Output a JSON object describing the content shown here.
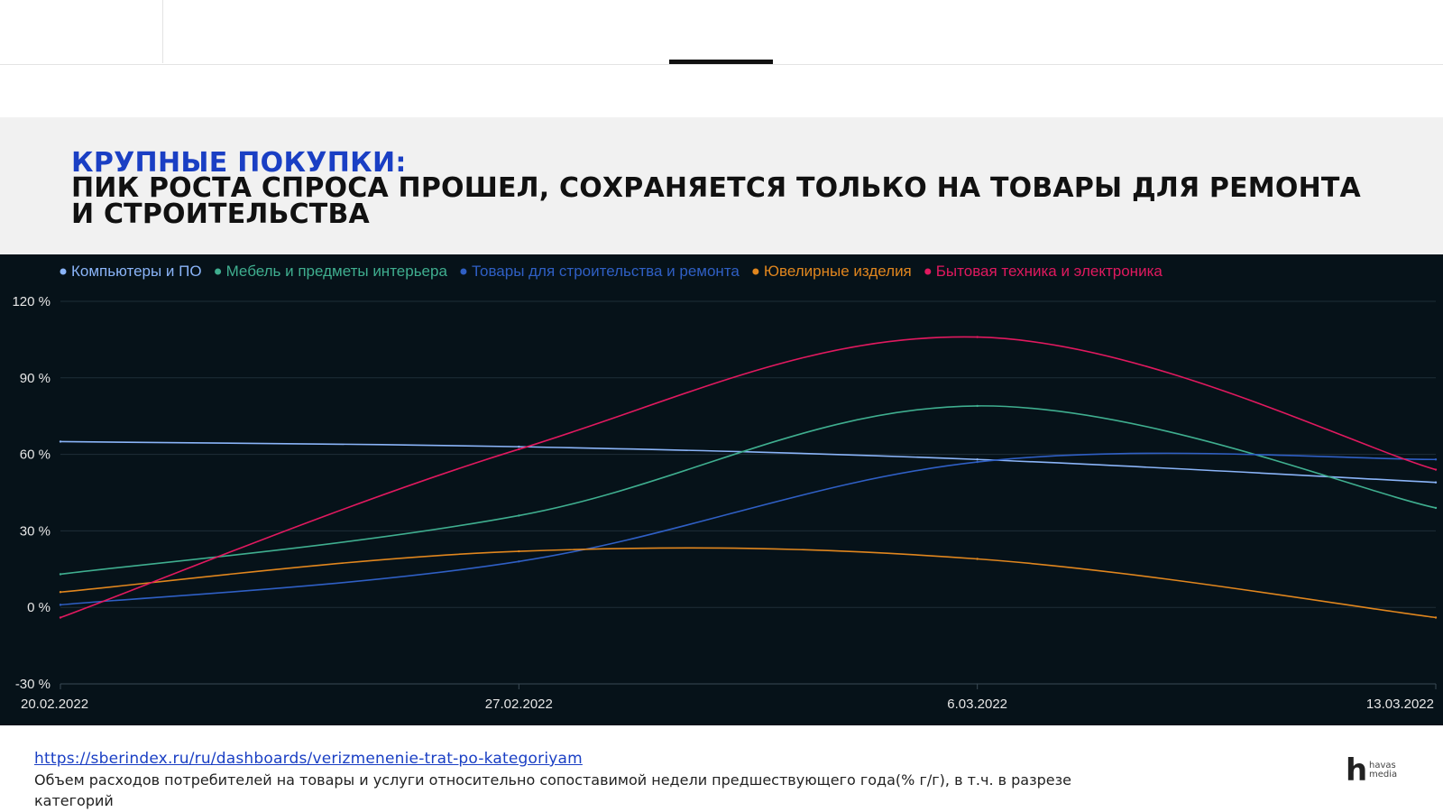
{
  "header": {
    "title_accent": "КРУПНЫЕ ПОКУПКИ:",
    "title_main": "ПИК РОСТА СПРОСА ПРОШЕЛ, СОХРАНЯЕТСЯ ТОЛЬКО НА ТОВАРЫ ДЛЯ РЕМОНТА И СТРОИТЕЛЬСТВА"
  },
  "colors": {
    "accent": "#1a3fc4",
    "chart_background": "#061219",
    "grid": "#1f2e38",
    "axis_text": "#e6e6e6"
  },
  "chart_data": {
    "type": "line",
    "x": [
      "20.02.2022",
      "27.02.2022",
      "6.03.2022",
      "13.03.2022"
    ],
    "ylim": [
      -30,
      120
    ],
    "yticks": [
      -30,
      0,
      30,
      60,
      90,
      120
    ],
    "ytick_labels": [
      "-30 %",
      "0 %",
      "30 %",
      "60 %",
      "90 %",
      "120 %"
    ],
    "grid": true,
    "legend_position": "top-left",
    "series": [
      {
        "name": "Компьютеры и ПО",
        "color": "#8ab4f8",
        "values": [
          65,
          63,
          58,
          49
        ]
      },
      {
        "name": "Мебель и предметы интерьера",
        "color": "#3fae8f",
        "values": [
          13,
          36,
          79,
          39
        ]
      },
      {
        "name": "Товары для строительства и ремонта",
        "color": "#2f5fc4",
        "values": [
          1,
          18,
          57,
          58
        ]
      },
      {
        "name": "Ювелирные изделия",
        "color": "#e0861e",
        "values": [
          6,
          22,
          19,
          -4
        ]
      },
      {
        "name": "Бытовая техника и электроника",
        "color": "#e0195f",
        "values": [
          -4,
          62,
          106,
          54
        ]
      }
    ]
  },
  "footer": {
    "source_link": "https://sberindex.ru/ru/dashboards/verizmenenie-trat-po-kategoriyam",
    "note": "Объем расходов потребителей на товары и услуги относительно сопоставимой недели предшествующего года(% г/г), в т.ч. в разрезе категорий"
  },
  "logo": {
    "mark": "h",
    "text_line1": "havas",
    "text_line2": "media"
  }
}
